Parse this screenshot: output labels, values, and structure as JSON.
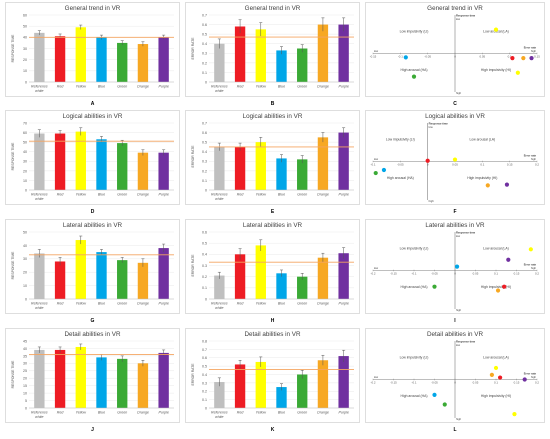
{
  "figure": {
    "letters": [
      "A",
      "B",
      "C",
      "D",
      "E",
      "F",
      "G",
      "H",
      "I",
      "J",
      "K",
      "L"
    ]
  },
  "axis_labels": {
    "response_time": "RESPONSE TIME",
    "error_rate": "ERROR RATE",
    "response_time_short": "Response time",
    "high": "high",
    "low": "low",
    "error_rate_short": "Error rate"
  },
  "quadrant_labels": {
    "low_impulsivity": "Low impulsivity (LI)",
    "low_arousal": "Low arousal (LA)",
    "high_arousal": "High arousal (HA)",
    "high_impulsivity": "High impulsivity (HI)"
  },
  "colors": {
    "reference": "#bfbfbf",
    "red": "#ee1c24",
    "yellow": "#ffff00",
    "blue": "#00a6e8",
    "green": "#3aaa35",
    "orange": "#f7a823",
    "purple": "#7030a0",
    "reference_line": "#f4a460"
  },
  "chart_data": [
    {
      "id": "A",
      "type": "bar",
      "title": "General trend in VR",
      "categories": [
        "Reference white",
        "Red",
        "Yellow",
        "Blue",
        "Green",
        "Orange",
        "Purple"
      ],
      "values": [
        44,
        41,
        49,
        40,
        35,
        34,
        40
      ],
      "errors": [
        2,
        2,
        2,
        2,
        2,
        2,
        2
      ],
      "ylabel": "RESPONSE TIME",
      "ylim": [
        0,
        60
      ],
      "yticks": [
        0,
        10,
        20,
        30,
        40,
        50,
        60
      ],
      "reference": 40
    },
    {
      "id": "B",
      "type": "bar",
      "title": "General trend in VR",
      "categories": [
        "Reference white",
        "Red",
        "Yellow",
        "Blue",
        "Green",
        "Orange",
        "Purple"
      ],
      "values": [
        0.4,
        0.58,
        0.55,
        0.33,
        0.35,
        0.6,
        0.6
      ],
      "errors": [
        0.05,
        0.07,
        0.07,
        0.04,
        0.04,
        0.07,
        0.07
      ],
      "ylabel": "ERROR RATE",
      "ylim": [
        0,
        0.7
      ],
      "yticks": [
        0,
        0.1,
        0.2,
        0.3,
        0.4,
        0.5,
        0.6,
        0.7
      ],
      "reference": 0.47
    },
    {
      "id": "C",
      "type": "scatter",
      "title": "General trend in VR",
      "xlim": [
        -0.15,
        0.15
      ],
      "xticks": [
        -0.15,
        -0.1,
        -0.05,
        0,
        0.05,
        0.1,
        0.15
      ],
      "ylim": [
        -1,
        1
      ],
      "points": [
        {
          "color": "yellow",
          "x": 0.075,
          "y": 0.62
        },
        {
          "color": "red",
          "x": 0.105,
          "y": -0.12
        },
        {
          "color": "orange",
          "x": 0.125,
          "y": -0.12
        },
        {
          "color": "purple",
          "x": 0.14,
          "y": -0.12
        },
        {
          "color": "blue",
          "x": -0.09,
          "y": -0.1
        },
        {
          "color": "green",
          "x": -0.075,
          "y": -0.6
        },
        {
          "color": "yellow",
          "x": 0.115,
          "y": -0.5
        }
      ]
    },
    {
      "id": "D",
      "type": "bar",
      "title": "Logical abilities in VR",
      "categories": [
        "Reference white",
        "Red",
        "Yellow",
        "Blue",
        "Green",
        "Orange",
        "Purple"
      ],
      "values": [
        59,
        59,
        61,
        53,
        49,
        39,
        39
      ],
      "errors": [
        4,
        3,
        4,
        3,
        3,
        3,
        3
      ],
      "ylabel": "RESPONSE TIME",
      "ylim": [
        0,
        70
      ],
      "yticks": [
        0,
        10,
        20,
        30,
        40,
        50,
        60,
        70
      ],
      "reference": 51
    },
    {
      "id": "E",
      "type": "bar",
      "title": "Logical abilities in VR",
      "categories": [
        "Reference white",
        "Red",
        "Yellow",
        "Blue",
        "Green",
        "Orange",
        "Purple"
      ],
      "values": [
        0.45,
        0.45,
        0.5,
        0.33,
        0.32,
        0.55,
        0.6
      ],
      "errors": [
        0.04,
        0.04,
        0.05,
        0.04,
        0.04,
        0.05,
        0.05
      ],
      "ylabel": "ERROR RATE",
      "ylim": [
        0,
        0.7
      ],
      "yticks": [
        0,
        0.1,
        0.2,
        0.3,
        0.4,
        0.5,
        0.6,
        0.7
      ],
      "reference": 0.45
    },
    {
      "id": "F",
      "type": "scatter",
      "title": "Logical abilities in VR",
      "xlim": [
        -0.1,
        0.2
      ],
      "xticks": [
        -0.1,
        -0.05,
        0,
        0.05,
        0.1,
        0.15,
        0.2
      ],
      "ylim": [
        -1,
        1
      ],
      "points": [
        {
          "color": "red",
          "x": 0.0,
          "y": 0.02
        },
        {
          "color": "yellow",
          "x": 0.05,
          "y": 0.05
        },
        {
          "color": "blue",
          "x": -0.08,
          "y": -0.22
        },
        {
          "color": "green",
          "x": -0.095,
          "y": -0.3
        },
        {
          "color": "orange",
          "x": 0.11,
          "y": -0.62
        },
        {
          "color": "purple",
          "x": 0.145,
          "y": -0.6
        }
      ]
    },
    {
      "id": "G",
      "type": "bar",
      "title": "Lateral abilities in VR",
      "categories": [
        "Reference white",
        "Red",
        "Yellow",
        "Blue",
        "Green",
        "Orange",
        "Purple"
      ],
      "values": [
        34,
        28,
        44,
        35,
        29,
        27,
        38
      ],
      "errors": [
        3,
        3,
        3,
        2,
        2,
        3,
        3
      ],
      "ylabel": "RESPONSE TIME",
      "ylim": [
        0,
        50
      ],
      "yticks": [
        0,
        10,
        20,
        30,
        40,
        50
      ],
      "reference": 33
    },
    {
      "id": "H",
      "type": "bar",
      "title": "Lateral abilities in VR",
      "categories": [
        "Reference white",
        "Red",
        "Yellow",
        "Blue",
        "Green",
        "Orange",
        "Purple"
      ],
      "values": [
        0.21,
        0.4,
        0.48,
        0.23,
        0.2,
        0.37,
        0.41
      ],
      "errors": [
        0.03,
        0.05,
        0.05,
        0.03,
        0.03,
        0.04,
        0.05
      ],
      "ylabel": "ERROR RATE",
      "ylim": [
        0,
        0.6
      ],
      "yticks": [
        0,
        0.1,
        0.2,
        0.3,
        0.4,
        0.5,
        0.6
      ],
      "reference": 0.33
    },
    {
      "id": "I",
      "type": "scatter",
      "title": "Lateral abilities in VR",
      "xlim": [
        -0.2,
        0.2
      ],
      "xticks": [
        -0.2,
        -0.15,
        -0.1,
        -0.05,
        0,
        0.05,
        0.1,
        0.15,
        0.2
      ],
      "ylim": [
        -1,
        1
      ],
      "points": [
        {
          "color": "yellow",
          "x": 0.185,
          "y": 0.55
        },
        {
          "color": "purple",
          "x": 0.13,
          "y": 0.28
        },
        {
          "color": "blue",
          "x": 0.005,
          "y": 0.1
        },
        {
          "color": "red",
          "x": 0.12,
          "y": -0.42
        },
        {
          "color": "orange",
          "x": 0.105,
          "y": -0.52
        },
        {
          "color": "green",
          "x": -0.05,
          "y": -0.42
        }
      ]
    },
    {
      "id": "J",
      "type": "bar",
      "title": "Detail abilities in VR",
      "categories": [
        "Reference white",
        "Red",
        "Yellow",
        "Blue",
        "Green",
        "Orange",
        "Purple"
      ],
      "values": [
        39,
        39,
        41,
        34,
        33,
        30,
        37
      ],
      "errors": [
        2,
        2,
        2,
        2,
        2,
        2,
        2
      ],
      "ylabel": "RESPONSE TIME",
      "ylim": [
        0,
        45
      ],
      "yticks": [
        0,
        5,
        10,
        15,
        20,
        25,
        30,
        35,
        40,
        45
      ],
      "reference": 36
    },
    {
      "id": "K",
      "type": "bar",
      "title": "Detail abilities in VR",
      "categories": [
        "Reference white",
        "Red",
        "Yellow",
        "Blue",
        "Green",
        "Orange",
        "Purple"
      ],
      "values": [
        0.31,
        0.52,
        0.55,
        0.25,
        0.4,
        0.57,
        0.62
      ],
      "errors": [
        0.05,
        0.05,
        0.06,
        0.04,
        0.05,
        0.06,
        0.07
      ],
      "ylabel": "ERROR RATE",
      "ylim": [
        0,
        0.8
      ],
      "yticks": [
        0,
        0.1,
        0.2,
        0.3,
        0.4,
        0.5,
        0.6,
        0.7,
        0.8
      ],
      "reference": 0.46
    },
    {
      "id": "L",
      "type": "scatter",
      "title": "Detail abilities in VR",
      "xlim": [
        -0.2,
        0.2
      ],
      "xticks": [
        -0.2,
        -0.15,
        -0.1,
        -0.05,
        0,
        0.05,
        0.1,
        0.15,
        0.2
      ],
      "ylim": [
        -1,
        1
      ],
      "points": [
        {
          "color": "yellow",
          "x": 0.1,
          "y": 0.3
        },
        {
          "color": "orange",
          "x": 0.09,
          "y": 0.12
        },
        {
          "color": "red",
          "x": 0.11,
          "y": 0.05
        },
        {
          "color": "purple",
          "x": 0.17,
          "y": 0.0
        },
        {
          "color": "blue",
          "x": -0.05,
          "y": -0.4
        },
        {
          "color": "green",
          "x": -0.025,
          "y": -0.65
        },
        {
          "color": "yellow",
          "x": 0.145,
          "y": -0.9
        }
      ]
    }
  ]
}
